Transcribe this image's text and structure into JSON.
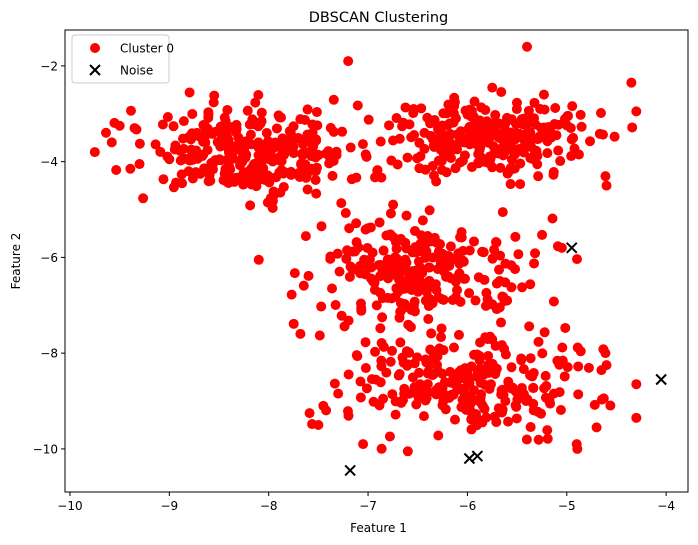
{
  "chart_data": {
    "type": "scatter",
    "title": "DBSCAN Clustering",
    "xlabel": "Feature 1",
    "ylabel": "Feature 2",
    "xlim": [
      -10.05,
      -3.78
    ],
    "ylim": [
      -10.9,
      -1.25
    ],
    "xticks": [
      -10,
      -9,
      -8,
      -7,
      -6,
      -5,
      -4
    ],
    "yticks": [
      -10,
      -8,
      -6,
      -4,
      -2
    ],
    "xtick_labels": [
      "−10",
      "−9",
      "−8",
      "−7",
      "−6",
      "−5",
      "−4"
    ],
    "ytick_labels": [
      "−10",
      "−8",
      "−6",
      "−4",
      "−2"
    ],
    "grid": false,
    "legend_position": "upper-left",
    "series": [
      {
        "name": "Cluster 0",
        "marker": "circle",
        "color": "#ff0000",
        "clusters": [
          {
            "center": [
              -8.2,
              -3.8
            ],
            "spread": [
              0.55,
              0.45
            ],
            "count": 300
          },
          {
            "center": [
              -5.8,
              -3.5
            ],
            "spread": [
              0.5,
              0.4
            ],
            "count": 280
          },
          {
            "center": [
              -6.5,
              -6.3
            ],
            "spread": [
              0.55,
              0.55
            ],
            "count": 260
          },
          {
            "center": [
              -6.0,
              -8.6
            ],
            "spread": [
              0.65,
              0.55
            ],
            "count": 270
          }
        ],
        "extra_points": [
          [
            -9.75,
            -3.8
          ],
          [
            -9.5,
            -3.25
          ],
          [
            -9.35,
            -3.3
          ],
          [
            -9.3,
            -4.05
          ],
          [
            -9.0,
            -3.95
          ],
          [
            -7.2,
            -1.9
          ],
          [
            -5.4,
            -1.6
          ],
          [
            -4.35,
            -2.35
          ],
          [
            -4.3,
            -2.95
          ],
          [
            -4.6,
            -4.5
          ],
          [
            -4.7,
            -9.55
          ],
          [
            -4.9,
            -9.9
          ],
          [
            -5.6,
            -6.9
          ],
          [
            -7.45,
            -9.1
          ],
          [
            -7.5,
            -9.5
          ],
          [
            -6.6,
            -10.05
          ],
          [
            -7.05,
            -9.9
          ],
          [
            -5.05,
            -5.8
          ],
          [
            -4.6,
            -8.25
          ],
          [
            -8.1,
            -6.05
          ]
        ]
      },
      {
        "name": "Noise",
        "marker": "x",
        "color": "#000000",
        "points": [
          [
            -4.95,
            -5.8
          ],
          [
            -4.05,
            -8.55
          ],
          [
            -7.18,
            -10.45
          ],
          [
            -5.98,
            -10.2
          ],
          [
            -5.9,
            -10.15
          ]
        ]
      }
    ]
  }
}
